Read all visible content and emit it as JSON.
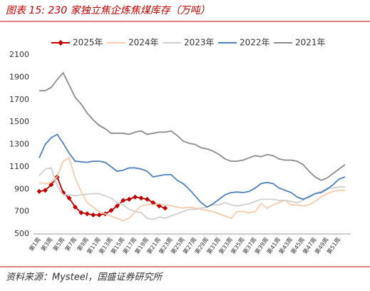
{
  "chart_data": {
    "type": "line",
    "title": "图表 15:  230 家独立焦企炼焦煤库存（万吨）",
    "source": "资料来源：Mysteel，国盛证券研究所",
    "categories": [
      "第1周",
      null,
      "第3周",
      null,
      "第5周",
      null,
      "第7周",
      null,
      "第9周",
      null,
      "第11周",
      null,
      "第13周",
      null,
      "第15周",
      null,
      "第17周",
      null,
      "第19周",
      null,
      "第21周",
      null,
      "第23周",
      null,
      "第25周",
      null,
      "第27周",
      null,
      "第29周",
      null,
      "第31周",
      null,
      "第33周",
      null,
      "第35周",
      null,
      "第37周",
      null,
      "第39周",
      null,
      "第41周",
      null,
      "第43周",
      null,
      "第45周",
      null,
      "第47周",
      null,
      "第49周",
      null,
      "第51周",
      null
    ],
    "ylim": [
      500,
      2100
    ],
    "yticks": [
      500,
      700,
      900,
      1100,
      1300,
      1500,
      1700,
      1900,
      2100
    ],
    "series": [
      {
        "name": "2025年",
        "color": "#c00000",
        "marker": "diamond",
        "values": [
          880,
          890,
          940,
          1010,
          870,
          820,
          740,
          690,
          680,
          670,
          670,
          680,
          710,
          750,
          800,
          810,
          830,
          820,
          810,
          780,
          750,
          730,
          null,
          null,
          null,
          null,
          null,
          null,
          null,
          null,
          null,
          null,
          null,
          null,
          null,
          null,
          null,
          null,
          null,
          null,
          null,
          null,
          null,
          null,
          null,
          null,
          null,
          null,
          null,
          null,
          null,
          null
        ]
      },
      {
        "name": "2024年",
        "color": "#f8cbad",
        "values": [
          960,
          950,
          960,
          1010,
          1150,
          1180,
          1000,
          880,
          780,
          740,
          700,
          680,
          660,
          640,
          620,
          640,
          700,
          750,
          760,
          760,
          770,
          760,
          750,
          740,
          730,
          740,
          730,
          720,
          710,
          700,
          680,
          660,
          640,
          700,
          700,
          690,
          700,
          770,
          730,
          760,
          780,
          800,
          760,
          760,
          750,
          760,
          790,
          830,
          860,
          880,
          890,
          890
        ]
      },
      {
        "name": "2023年",
        "color": "#d0d0d0",
        "values": [
          1020,
          1080,
          1090,
          930,
          850,
          850,
          840,
          850,
          855,
          860,
          860,
          840,
          820,
          780,
          760,
          720,
          700,
          690,
          640,
          630,
          650,
          640,
          660,
          680,
          700,
          720,
          720,
          730,
          740,
          760,
          760,
          780,
          760,
          750,
          760,
          770,
          790,
          810,
          810,
          810,
          800,
          800,
          790,
          780,
          800,
          840,
          860,
          880,
          910,
          910,
          920,
          920
        ]
      },
      {
        "name": "2022年",
        "color": "#4f81bd",
        "values": [
          1180,
          1300,
          1360,
          1390,
          1310,
          1220,
          1150,
          1145,
          1140,
          1150,
          1150,
          1140,
          1100,
          1060,
          1070,
          1090,
          1090,
          1080,
          1060,
          1010,
          1020,
          1030,
          1030,
          980,
          950,
          900,
          840,
          780,
          740,
          770,
          810,
          850,
          870,
          875,
          870,
          880,
          910,
          950,
          960,
          950,
          910,
          890,
          870,
          830,
          810,
          830,
          860,
          870,
          900,
          940,
          990,
          1010
        ]
      },
      {
        "name": "2021年",
        "color": "#8c8c8c",
        "values": [
          1780,
          1780,
          1810,
          1880,
          1940,
          1830,
          1720,
          1660,
          1580,
          1520,
          1470,
          1440,
          1400,
          1400,
          1400,
          1390,
          1410,
          1420,
          1390,
          1400,
          1410,
          1410,
          1420,
          1380,
          1330,
          1310,
          1300,
          1270,
          1260,
          1240,
          1210,
          1170,
          1150,
          1150,
          1160,
          1180,
          1200,
          1190,
          1210,
          1200,
          1170,
          1160,
          1160,
          1150,
          1120,
          1060,
          1010,
          980,
          1000,
          1040,
          1080,
          1120
        ]
      }
    ]
  }
}
